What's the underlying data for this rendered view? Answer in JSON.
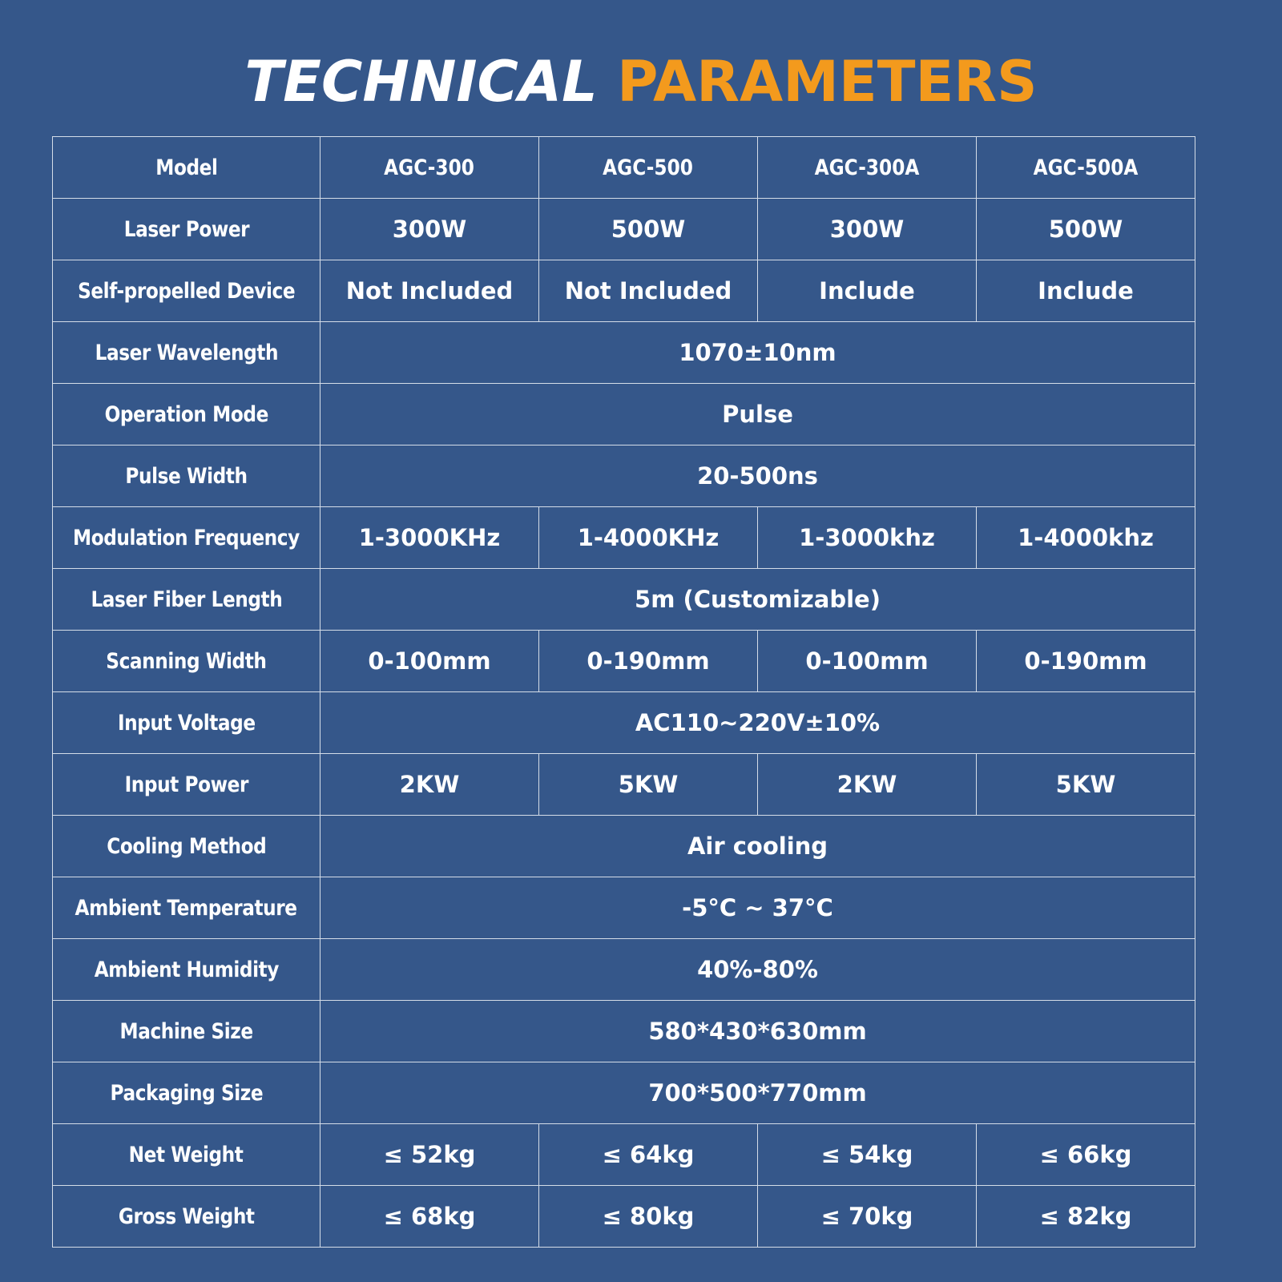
{
  "title": {
    "part1": "TECHNICAL",
    "part2": "PARAMETERS"
  },
  "colors": {
    "background": "#35578a",
    "accent": "#f39a1d",
    "text": "#ffffff",
    "grid": "#d5dde8"
  },
  "table": {
    "rows": [
      {
        "label": "Model",
        "values": [
          "AGC-300",
          "AGC-500",
          "AGC-300A",
          "AGC-500A"
        ]
      },
      {
        "label": "Laser Power",
        "values": [
          "300W",
          "500W",
          "300W",
          "500W"
        ]
      },
      {
        "label": "Self-propelled Device",
        "values": [
          "Not Included",
          "Not Included",
          "Include",
          "Include"
        ]
      },
      {
        "label": "Laser Wavelength",
        "values": [
          "1070±10nm"
        ]
      },
      {
        "label": "Operation Mode",
        "values": [
          "Pulse"
        ]
      },
      {
        "label": "Pulse Width",
        "values": [
          "20-500ns"
        ]
      },
      {
        "label": "Modulation Frequency",
        "values": [
          "1-3000KHz",
          "1-4000KHz",
          "1-3000khz",
          "1-4000khz"
        ]
      },
      {
        "label": "Laser Fiber Length",
        "values": [
          "5m (Customizable)"
        ]
      },
      {
        "label": "Scanning Width",
        "values": [
          "0-100mm",
          "0-190mm",
          "0-100mm",
          "0-190mm"
        ]
      },
      {
        "label": "Input Voltage",
        "values": [
          "AC110~220V±10%"
        ]
      },
      {
        "label": "Input Power",
        "values": [
          "2KW",
          "5KW",
          "2KW",
          "5KW"
        ]
      },
      {
        "label": "Cooling Method",
        "values": [
          "Air cooling"
        ]
      },
      {
        "label": "Ambient Temperature",
        "values": [
          "-5°C ~ 37°C"
        ]
      },
      {
        "label": "Ambient Humidity",
        "values": [
          "40%-80%"
        ]
      },
      {
        "label": "Machine Size",
        "values": [
          "580*430*630mm"
        ]
      },
      {
        "label": "Packaging Size",
        "values": [
          "700*500*770mm"
        ]
      },
      {
        "label": "Net Weight",
        "values": [
          "≤ 52kg",
          "≤ 64kg",
          "≤ 54kg",
          "≤ 66kg"
        ]
      },
      {
        "label": "Gross Weight",
        "values": [
          "≤ 68kg",
          "≤ 80kg",
          "≤ 70kg",
          "≤ 82kg"
        ]
      }
    ]
  }
}
